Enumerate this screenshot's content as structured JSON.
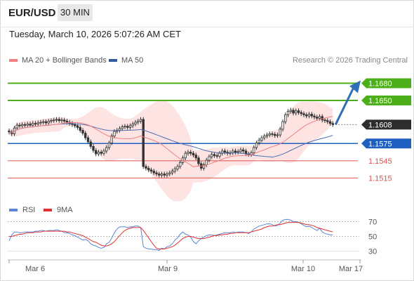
{
  "header": {
    "symbol": "EUR/USD",
    "timeframe": "30 MIN",
    "timestamp": "Tuesday, March 10, 2026 5:07:26 AM CET"
  },
  "legend": {
    "ma20_label": "MA 20 + Bollinger Bands",
    "ma50_label": "MA 50",
    "copyright": "Research © 2026 Trading Central"
  },
  "colors": {
    "ma20": "#f08080",
    "ma50": "#4a6fb5",
    "bollinger_fill": "#fde3e1",
    "resistance": "#4caf1a",
    "current": "#2d2d2d",
    "pivot": "#1f5fbf",
    "support": "#e05050",
    "forecast_arrow": "#2f6fb8",
    "rsi": "#5b84d6",
    "rsi_ma": "#e23030"
  },
  "chart_data": [
    {
      "type": "candlestick",
      "title": "EUR/USD 30 MIN",
      "x_ticks": [
        "Mar 6",
        "Mar 9",
        "Mar 10",
        "Mar 17"
      ],
      "ylim": [
        1.148,
        1.1705
      ],
      "series": [
        {
          "name": "MA 20 + Bollinger Bands",
          "kind": "line"
        },
        {
          "name": "MA 50",
          "kind": "line"
        }
      ],
      "levels": [
        {
          "value": 1.168,
          "label": "1.1680",
          "role": "resistance"
        },
        {
          "value": 1.165,
          "label": "1.1650",
          "role": "resistance"
        },
        {
          "value": 1.1608,
          "label": "1.1608",
          "role": "current"
        },
        {
          "value": 1.1575,
          "label": "1.1575",
          "role": "pivot"
        },
        {
          "value": 1.1545,
          "label": "1.1545",
          "role": "support"
        },
        {
          "value": 1.1515,
          "label": "1.1515",
          "role": "support"
        }
      ],
      "forecast_target": 1.168,
      "closes": [
        1.1595,
        1.1592,
        1.1602,
        1.1607,
        1.1606,
        1.1608,
        1.1607,
        1.1609,
        1.1607,
        1.161,
        1.1609,
        1.1611,
        1.1612,
        1.1613,
        1.1611,
        1.1614,
        1.1615,
        1.1616,
        1.1617,
        1.1615,
        1.1616,
        1.1614,
        1.1612,
        1.161,
        1.1608,
        1.1606,
        1.1603,
        1.1598,
        1.1593,
        1.1585,
        1.1578,
        1.157,
        1.1563,
        1.1557,
        1.156,
        1.1558,
        1.1562,
        1.1568,
        1.1576,
        1.1588,
        1.1596,
        1.1598,
        1.1601,
        1.1604,
        1.1605,
        1.1603,
        1.1606,
        1.1609,
        1.1612,
        1.1614,
        1.1617,
        1.1535,
        1.1532,
        1.1529,
        1.1527,
        1.1524,
        1.1522,
        1.152,
        1.1522,
        1.152,
        1.1522,
        1.1524,
        1.1527,
        1.1531,
        1.1535,
        1.1542,
        1.155,
        1.1558,
        1.156,
        1.1558,
        1.1555,
        1.155,
        1.154,
        1.1532,
        1.1538,
        1.1546,
        1.1552,
        1.1556,
        1.1554,
        1.1553,
        1.1558,
        1.1562,
        1.156,
        1.1558,
        1.1559,
        1.1562,
        1.156,
        1.1561,
        1.1564,
        1.1562,
        1.1557,
        1.1556,
        1.1559,
        1.1568,
        1.1576,
        1.1581,
        1.1585,
        1.1588,
        1.159,
        1.1592,
        1.1591,
        1.1589,
        1.159,
        1.16,
        1.1613,
        1.1625,
        1.1631,
        1.1633,
        1.1628,
        1.1632,
        1.1629,
        1.1627,
        1.1625,
        1.1623,
        1.1626,
        1.1623,
        1.1621,
        1.1619,
        1.1622,
        1.1616,
        1.1615,
        1.1613,
        1.161,
        1.1608
      ]
    },
    {
      "type": "line",
      "title": "RSI",
      "series": [
        {
          "name": "RSI"
        },
        {
          "name": "9MA"
        }
      ],
      "y_ticks": [
        70,
        50,
        30
      ],
      "ylim": [
        20,
        80
      ],
      "rsi": [
        44,
        52,
        56,
        56,
        55,
        55,
        56,
        56,
        56,
        56,
        57,
        57,
        58,
        58,
        57,
        58,
        58,
        58,
        59,
        58,
        57,
        55,
        55,
        54,
        52,
        51,
        49,
        47,
        45,
        46,
        44,
        40,
        38,
        37,
        35,
        34,
        35,
        40,
        42,
        48,
        55,
        60,
        63,
        63,
        63,
        62,
        63,
        63,
        64,
        64,
        62,
        36,
        34,
        33,
        33,
        32,
        32,
        31,
        34,
        33,
        36,
        37,
        40,
        45,
        48,
        53,
        56,
        53,
        52,
        49,
        43,
        40,
        44,
        47,
        49,
        51,
        52,
        52,
        51,
        52,
        53,
        54,
        55,
        55,
        55,
        56,
        55,
        56,
        56,
        56,
        55,
        54,
        56,
        60,
        62,
        64,
        65,
        66,
        67,
        67,
        66,
        64,
        65,
        68,
        72,
        73,
        73,
        72,
        70,
        70,
        69,
        67,
        65,
        63,
        64,
        62,
        60,
        58,
        61,
        56,
        54,
        53,
        52,
        52
      ],
      "ma9": [
        50,
        50,
        51,
        52,
        53,
        53,
        54,
        55,
        55,
        55,
        56,
        56,
        56,
        57,
        57,
        57,
        57,
        57,
        57,
        57,
        57,
        57,
        56,
        56,
        55,
        54,
        53,
        52,
        51,
        49,
        47,
        45,
        43,
        42,
        40,
        38,
        37,
        37,
        38,
        40,
        43,
        47,
        51,
        55,
        58,
        60,
        61,
        62,
        62,
        62,
        62,
        58,
        53,
        48,
        43,
        38,
        34,
        33,
        33,
        33,
        34,
        35,
        36,
        38,
        41,
        44,
        47,
        49,
        50,
        50,
        49,
        48,
        47,
        47,
        47,
        48,
        49,
        50,
        51,
        51,
        52,
        52,
        53,
        53,
        54,
        54,
        55,
        55,
        55,
        55,
        55,
        55,
        56,
        57,
        58,
        59,
        60,
        62,
        63,
        64,
        64,
        65,
        66,
        66,
        67,
        68,
        69,
        69,
        69,
        69,
        69,
        68,
        67,
        66,
        66,
        65,
        64,
        62,
        61,
        60,
        59,
        58,
        57,
        56
      ]
    }
  ]
}
